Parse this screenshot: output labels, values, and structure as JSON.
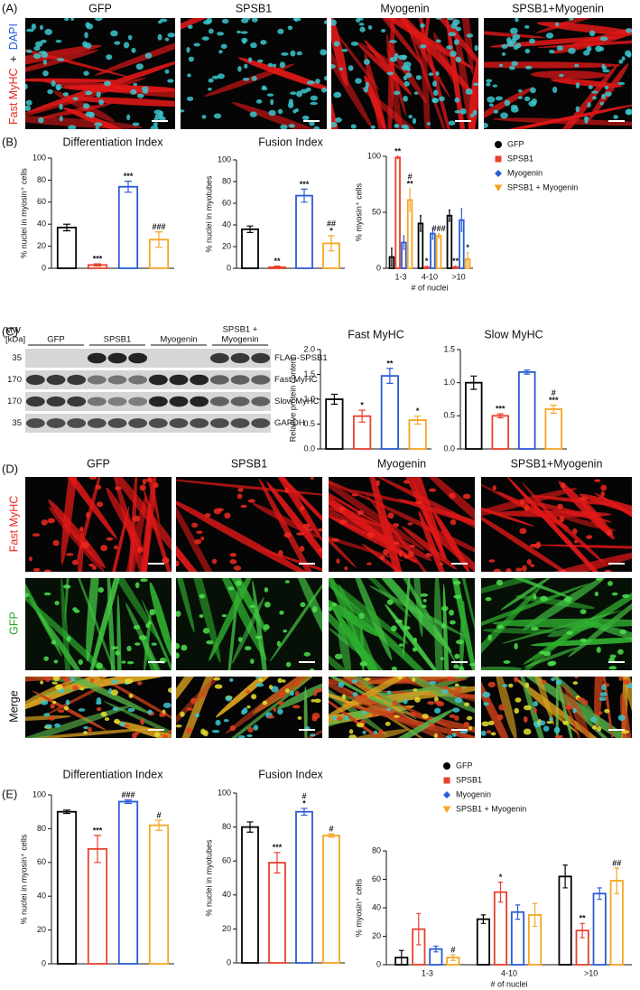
{
  "figure": {
    "panel_labels": [
      "(A)",
      "(B)",
      "(C)",
      "(D)",
      "(E)"
    ],
    "panel_a": {
      "columns": [
        "GFP",
        "SPSB1",
        "Myogenin",
        "SPSB1+Myogenin"
      ],
      "stain_label": [
        "Fast MyHC",
        "+",
        "DAPI"
      ]
    },
    "blot": {
      "mw_header": [
        "MW",
        "[kDa]"
      ],
      "groups": [
        [
          "GFP"
        ],
        [
          "SPSB1"
        ],
        [
          "Myogenin"
        ],
        [
          "SPSB1 +",
          "Myogenin"
        ]
      ],
      "rows": [
        {
          "label": "FLAG-SPSB1",
          "mw": "35"
        },
        {
          "label": "Fast MyHC",
          "mw": "170"
        },
        {
          "label": "Slow MyHC",
          "mw": "170"
        },
        {
          "label": "GAPDH",
          "mw": "35"
        }
      ]
    },
    "panel_d": {
      "columns": [
        "GFP",
        "SPSB1",
        "Myogenin",
        "SPSB1+Myogenin"
      ],
      "rows": [
        "Fast MyHC",
        "GFP",
        "Merge"
      ]
    }
  },
  "chart_data": [
    {
      "type": "bar",
      "title": "Differentiation Index",
      "y_label": "% nuclei in myosin⁺ cells",
      "values": [
        37,
        3,
        74,
        26
      ],
      "errors": [
        3,
        1,
        5,
        7
      ],
      "colors": [
        "#000000",
        "#e8412c",
        "#2a5bd7",
        "#f5a623"
      ],
      "annotations": [
        null,
        "***",
        "***",
        "###"
      ],
      "ylim": [
        0,
        100
      ],
      "yticks": [
        0,
        20,
        40,
        60,
        80,
        100
      ]
    },
    {
      "type": "bar",
      "title": "Fusion Index",
      "y_label": "% nuclei in myotubes",
      "values": [
        36,
        1,
        67,
        23
      ],
      "errors": [
        3,
        1,
        6,
        7
      ],
      "colors": [
        "#000000",
        "#e8412c",
        "#2a5bd7",
        "#f5a623"
      ],
      "annotations": [
        null,
        "**",
        "***",
        [
          "*",
          "##"
        ]
      ],
      "ylim": [
        0,
        100
      ],
      "yticks": [
        0,
        20,
        40,
        60,
        80,
        100
      ]
    },
    {
      "type": "grouped_bar",
      "y_label": "% myosin⁺ cells",
      "x_label": "# of nuclei",
      "categories": [
        "1-3",
        "4-10",
        ">10"
      ],
      "legend": "right",
      "ylim": [
        0,
        100
      ],
      "yticks": [
        0,
        50,
        100
      ],
      "series": [
        {
          "name": "GFP",
          "color": "#000000",
          "marker": "circle",
          "values": [
            10,
            40,
            47
          ],
          "errors": [
            8,
            7,
            5
          ]
        },
        {
          "name": "SPSB1",
          "color": "#e8412c",
          "marker": "square",
          "values": [
            99,
            1,
            1
          ],
          "errors": [
            1,
            1,
            1
          ],
          "annotations": [
            "**",
            "*",
            "**"
          ]
        },
        {
          "name": "Myogenin",
          "color": "#2a5bd7",
          "marker": "diamond",
          "values": [
            23,
            31,
            43
          ],
          "errors": [
            6,
            5,
            10
          ]
        },
        {
          "name": "SPSB1 + Myogenin",
          "color": "#f5a623",
          "marker": "triangle",
          "values": [
            61,
            29,
            8
          ],
          "errors": [
            10,
            2,
            6
          ],
          "annotations": [
            [
              "**",
              "#"
            ],
            "###",
            "*"
          ]
        }
      ]
    },
    {
      "type": "bar",
      "title": "Fast MyHC",
      "y_label": "Relative protein content",
      "values": [
        1.0,
        0.66,
        1.47,
        0.58
      ],
      "errors": [
        0.1,
        0.12,
        0.15,
        0.08
      ],
      "colors": [
        "#000000",
        "#e8412c",
        "#2a5bd7",
        "#f5a623"
      ],
      "annotations": [
        null,
        "*",
        "**",
        "*"
      ],
      "ylim": [
        0,
        2
      ],
      "yticks": [
        {
          "value": 0,
          "label": "0.0"
        },
        0.5,
        {
          "value": 1,
          "label": "1.0"
        },
        1.5,
        {
          "value": 2,
          "label": "2.0"
        }
      ]
    },
    {
      "type": "bar",
      "title": "Slow MyHC",
      "values": [
        1.0,
        0.5,
        1.16,
        0.6
      ],
      "errors": [
        0.1,
        0.03,
        0.03,
        0.06
      ],
      "colors": [
        "#000000",
        "#e8412c",
        "#2a5bd7",
        "#f5a623"
      ],
      "annotations": [
        null,
        "***",
        null,
        [
          "***",
          "#"
        ]
      ],
      "ylim": [
        0,
        1.5
      ],
      "yticks": [
        {
          "value": 0,
          "label": "0.0"
        },
        0.5,
        {
          "value": 1,
          "label": "1.0"
        },
        1.5
      ]
    },
    {
      "type": "bar",
      "title": "Differentiation Index",
      "y_label": "% nuclei in myosin⁺ cells",
      "values": [
        90,
        68,
        96,
        82
      ],
      "errors": [
        1,
        8,
        1,
        3
      ],
      "colors": [
        "#000000",
        "#e8412c",
        "#2a5bd7",
        "#f5a623"
      ],
      "annotations": [
        null,
        "***",
        "###",
        "#"
      ],
      "ylim": [
        0,
        100
      ],
      "yticks": [
        0,
        20,
        40,
        60,
        80,
        100
      ]
    },
    {
      "type": "bar",
      "title": "Fusion Index",
      "y_label": "% nuclei in myotubes",
      "values": [
        80,
        59,
        89,
        75
      ],
      "errors": [
        3,
        6,
        2,
        1
      ],
      "colors": [
        "#000000",
        "#e8412c",
        "#2a5bd7",
        "#f5a623"
      ],
      "annotations": [
        null,
        "***",
        [
          "*",
          "#"
        ],
        "#"
      ],
      "ylim": [
        0,
        100
      ],
      "yticks": [
        0,
        20,
        40,
        60,
        80,
        100
      ]
    },
    {
      "type": "grouped_bar",
      "y_label": "% myosin⁺ cells",
      "x_label": "# of nuclei",
      "categories": [
        "1-3",
        "4-10",
        ">10"
      ],
      "legend": "top",
      "ylim": [
        0,
        80
      ],
      "yticks": [
        0,
        20,
        40,
        60,
        80
      ],
      "series": [
        {
          "name": "GFP",
          "color": "#000000",
          "marker": "circle",
          "values": [
            5,
            32,
            62
          ],
          "errors": [
            5,
            3,
            8
          ]
        },
        {
          "name": "SPSB1",
          "color": "#e8412c",
          "marker": "square",
          "values": [
            25,
            51,
            24
          ],
          "errors": [
            11,
            7,
            5
          ],
          "annotations": [
            null,
            "*",
            "**"
          ]
        },
        {
          "name": "Myogenin",
          "color": "#2a5bd7",
          "marker": "diamond",
          "values": [
            11,
            37,
            50
          ],
          "errors": [
            2,
            5,
            4
          ]
        },
        {
          "name": "SPSB1 + Myogenin",
          "color": "#f5a623",
          "marker": "triangle",
          "values": [
            5,
            35,
            59
          ],
          "errors": [
            2,
            8,
            9
          ],
          "annotations": [
            "#",
            null,
            "##"
          ]
        }
      ]
    }
  ]
}
